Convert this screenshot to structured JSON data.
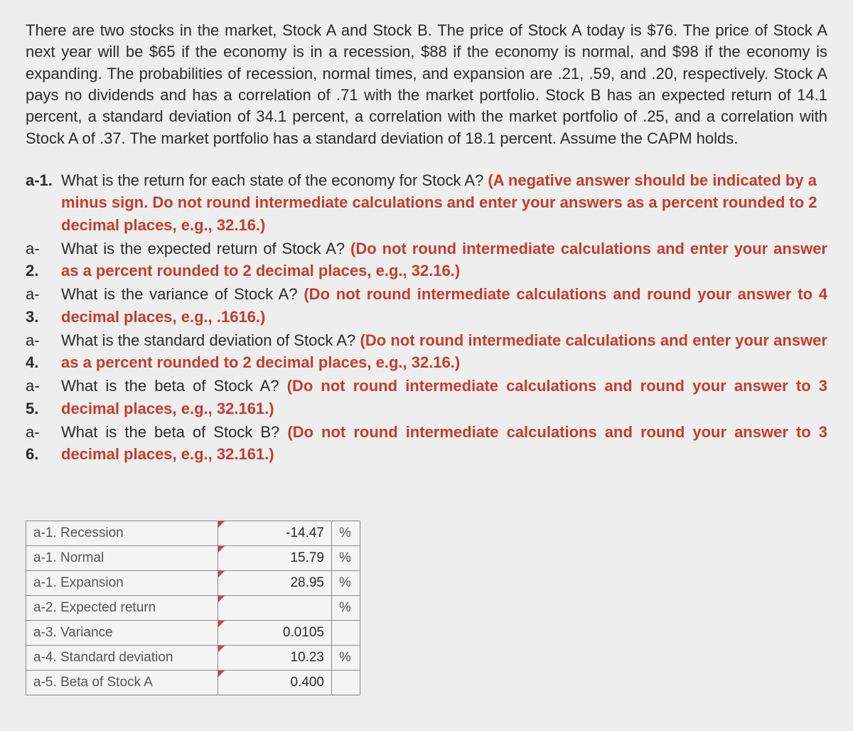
{
  "intro": "There are two stocks in the market, Stock A and Stock B. The price of Stock A today is $76. The price of Stock A next year will be $65 if the economy is in a recession, $88 if the economy is normal, and $98 if the economy is expanding. The probabilities of recession, normal times, and expansion are .21, .59, and .20, respectively. Stock A pays no dividends and has a correlation of .71 with the market portfolio. Stock B has an expected return of 14.1 percent, a standard deviation of 34.1 percent, a correlation with the market portfolio of .25, and a correlation with Stock A of .37. The market portfolio has a standard deviation of 18.1 percent. Assume the CAPM holds.",
  "questions": {
    "a1": {
      "label": "a-1.",
      "black": "What is the return for each state of the economy for Stock A? ",
      "red": "(A negative answer should be indicated by a minus sign. Do not round intermediate calculations and enter your answers as a percent rounded to 2 decimal places, e.g., 32.16.)"
    },
    "a2": {
      "l1": "a-",
      "l2": "2.",
      "black": "What is the expected return of Stock A? ",
      "red": "(Do not round intermediate calculations and enter your answer as a percent rounded to 2 decimal places, e.g., 32.16.)"
    },
    "a3": {
      "l1": "a-",
      "l2": "3.",
      "black": "What is the variance of Stock A? ",
      "red": "(Do not round intermediate calculations and round your answer to 4 decimal places, e.g., .1616.)"
    },
    "a4": {
      "l1": "a-",
      "l2": "4.",
      "black": "What is the standard deviation of Stock A? ",
      "red": "(Do not round intermediate calculations and enter your answer as a percent rounded to 2 decimal places, e.g., 32.16.)"
    },
    "a5": {
      "l1": "a-",
      "l2": "5.",
      "black": "What is the beta of Stock A? ",
      "red": "(Do not round intermediate calculations and round your answer to 3 decimal places, e.g., 32.161.)"
    },
    "a6": {
      "l1": "a-",
      "l2": "6.",
      "black": "What is the beta of Stock B? ",
      "red": "(Do not round intermediate calculations and round your answer to 3 decimal places, e.g., 32.161.)"
    }
  },
  "answers": {
    "rows": [
      {
        "label": "a-1. Recession",
        "value": "-14.47",
        "unit": "%"
      },
      {
        "label": "a-1. Normal",
        "value": "15.79",
        "unit": "%"
      },
      {
        "label": "a-1. Expansion",
        "value": "28.95",
        "unit": "%"
      },
      {
        "label": "a-2. Expected return",
        "value": "",
        "unit": "%"
      },
      {
        "label": "a-3. Variance",
        "value": "0.0105",
        "unit": ""
      },
      {
        "label": "a-4. Standard deviation",
        "value": "10.23",
        "unit": "%"
      },
      {
        "label": "a-5. Beta of Stock A",
        "value": "0.400",
        "unit": ""
      }
    ]
  },
  "colors": {
    "background": "#eeeeee",
    "text": "#2a2a2a",
    "red": "#c43c2e",
    "table_border": "#888888",
    "table_bg": "#f4f4f4",
    "corner_marker": "#cc4444"
  }
}
